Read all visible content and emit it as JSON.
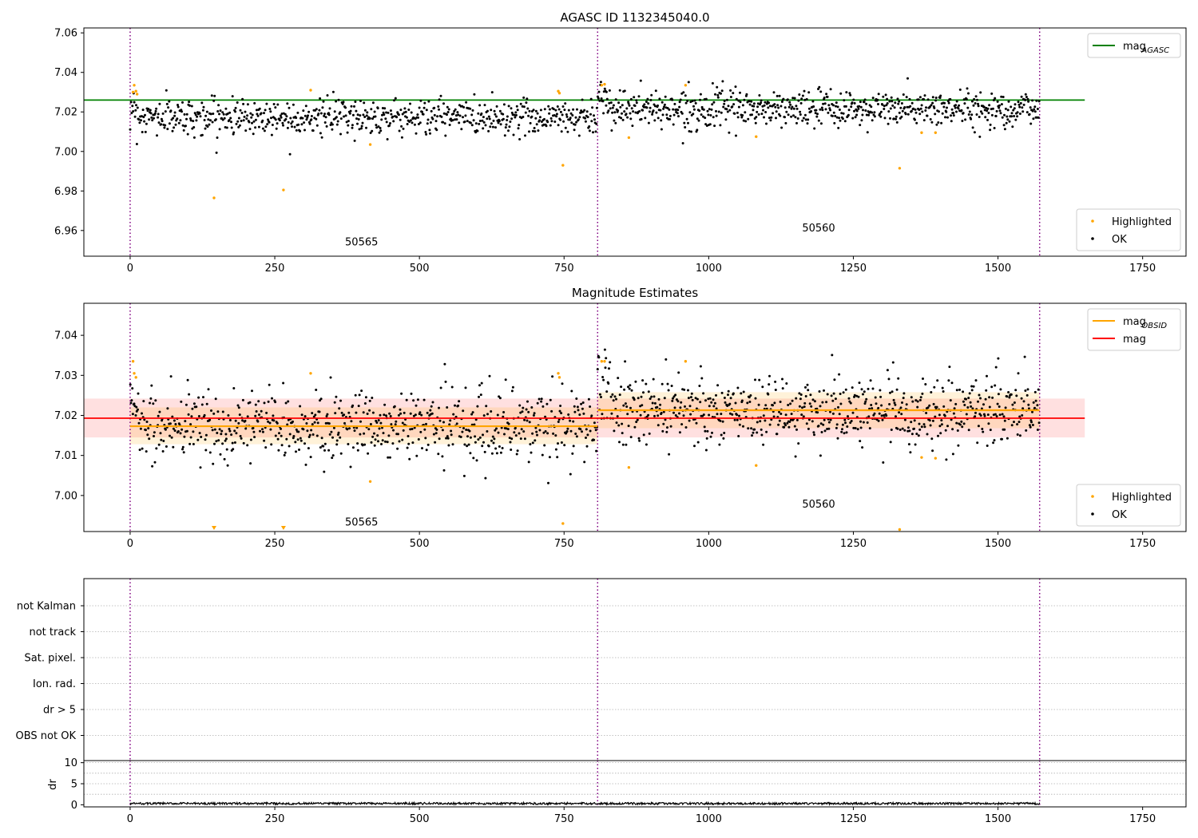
{
  "chart_data": [
    {
      "type": "scatter",
      "title": "AGASC ID 1132345040.0",
      "xlim": [
        -80,
        1825
      ],
      "ylim": [
        6.947,
        7.0625
      ],
      "xticks": [
        "0",
        "250",
        "500",
        "750",
        "1000",
        "1250",
        "1500",
        "1750"
      ],
      "xtick_values": [
        0,
        250,
        500,
        750,
        1000,
        1250,
        1500,
        1750
      ],
      "yticks": [
        "6.96",
        "6.98",
        "7.00",
        "7.02",
        "7.04",
        "7.06"
      ],
      "ytick_values": [
        6.96,
        6.98,
        7.0,
        7.02,
        7.04,
        7.06
      ],
      "epoch_lines": [
        0,
        808,
        1572
      ],
      "obsid_labels": [
        {
          "text": "50565",
          "x": 400,
          "y": 6.9525
        },
        {
          "text": "50560",
          "x": 1190,
          "y": 6.9595
        }
      ],
      "reference_lines": [
        {
          "name": "mag_AGASC",
          "y": 7.026,
          "x": [
            -80,
            1650
          ],
          "color": "#008000"
        }
      ],
      "ok_points": {
        "name": "OK",
        "color": "#000000",
        "segments": [
          {
            "x": [
              0,
              808
            ],
            "mean": 7.0175,
            "sd": 0.0045,
            "n": 700
          },
          {
            "x": [
              808,
              1572
            ],
            "mean": 7.0215,
            "sd": 0.0045,
            "n": 700
          }
        ]
      },
      "highlighted_points": {
        "name": "Highlighted",
        "color": "#ffa500",
        "points": [
          [
            5,
            7.03
          ],
          [
            7,
            7.0335
          ],
          [
            10,
            7.0305
          ],
          [
            12,
            7.029
          ],
          [
            145,
            6.9765
          ],
          [
            265,
            6.9805
          ],
          [
            312,
            7.031
          ],
          [
            415,
            7.0035
          ],
          [
            740,
            7.0305
          ],
          [
            742,
            7.0295
          ],
          [
            748,
            6.993
          ],
          [
            815,
            7.0335
          ],
          [
            820,
            7.034
          ],
          [
            862,
            7.007
          ],
          [
            960,
            7.0335
          ],
          [
            1082,
            7.0075
          ],
          [
            1330,
            6.9915
          ],
          [
            1368,
            7.0095
          ],
          [
            1392,
            7.0095
          ]
        ]
      },
      "legends": [
        {
          "position": "top-right",
          "entries": [
            {
              "label": "mag",
              "subscript": "AGASC",
              "kind": "line",
              "color": "#008000"
            }
          ]
        },
        {
          "position": "lower-right",
          "entries": [
            {
              "label": "Highlighted",
              "kind": "dot",
              "color": "#ffa500"
            },
            {
              "label": "OK",
              "kind": "dot",
              "color": "#000000"
            }
          ]
        }
      ]
    },
    {
      "type": "scatter",
      "title": "Magnitude Estimates",
      "xlim": [
        -80,
        1825
      ],
      "ylim": [
        6.991,
        7.048
      ],
      "xticks": [
        "0",
        "250",
        "500",
        "750",
        "1000",
        "1250",
        "1500",
        "1750"
      ],
      "xtick_values": [
        0,
        250,
        500,
        750,
        1000,
        1250,
        1500,
        1750
      ],
      "yticks": [
        "7.00",
        "7.01",
        "7.02",
        "7.03",
        "7.04"
      ],
      "ytick_values": [
        7.0,
        7.01,
        7.02,
        7.03,
        7.04
      ],
      "epoch_lines": [
        0,
        808,
        1572
      ],
      "obsid_labels": [
        {
          "text": "50565",
          "x": 400,
          "y": 6.9925
        },
        {
          "text": "50560",
          "x": 1190,
          "y": 6.997
        }
      ],
      "bands": [
        {
          "x": [
            -80,
            1650
          ],
          "y": [
            7.0145,
            7.0242
          ],
          "color": "#ff0000",
          "alpha": 0.12
        },
        {
          "x": [
            0,
            808
          ],
          "y": [
            7.0128,
            7.022
          ],
          "color": "#ffa500",
          "alpha": 0.15
        },
        {
          "x": [
            808,
            1572
          ],
          "y": [
            7.0168,
            7.0258
          ],
          "color": "#ffa500",
          "alpha": 0.15
        }
      ],
      "reference_lines": [
        {
          "name": "mag",
          "y": 7.0193,
          "x": [
            -80,
            1650
          ],
          "color": "#ff0000"
        },
        {
          "name": "mag_OBSID",
          "y": 7.0173,
          "x": [
            0,
            808
          ],
          "color": "#ffa500"
        },
        {
          "name": "mag_OBSID",
          "y": 7.0213,
          "x": [
            808,
            1572
          ],
          "color": "#ffa500"
        }
      ],
      "ok_points": {
        "name": "OK",
        "color": "#000000",
        "segments": [
          {
            "x": [
              0,
              808
            ],
            "mean": 7.0175,
            "sd": 0.0045,
            "n": 700
          },
          {
            "x": [
              808,
              1572
            ],
            "mean": 7.0215,
            "sd": 0.0045,
            "n": 700
          }
        ]
      },
      "highlighted_points": {
        "name": "Highlighted",
        "color": "#ffa500",
        "points": [
          [
            5,
            7.0335
          ],
          [
            7,
            7.0305
          ],
          [
            10,
            7.0295
          ],
          [
            312,
            7.0305
          ],
          [
            415,
            7.0035
          ],
          [
            740,
            7.0305
          ],
          [
            742,
            7.0295
          ],
          [
            748,
            6.993
          ],
          [
            815,
            7.0335
          ],
          [
            820,
            7.0335
          ],
          [
            862,
            7.007
          ],
          [
            960,
            7.0335
          ],
          [
            1082,
            7.0075
          ],
          [
            1368,
            7.0095
          ],
          [
            1392,
            7.0093
          ],
          [
            1330,
            6.9915
          ]
        ],
        "below_axis_markers": [
          145,
          265
        ]
      },
      "legends": [
        {
          "position": "top-right",
          "entries": [
            {
              "label": "mag",
              "subscript": "OBSID",
              "kind": "line",
              "color": "#ffa500"
            },
            {
              "label": "mag",
              "kind": "line",
              "color": "#ff0000"
            }
          ]
        },
        {
          "position": "lower-right",
          "entries": [
            {
              "label": "Highlighted",
              "kind": "dot",
              "color": "#ffa500"
            },
            {
              "label": "OK",
              "kind": "dot",
              "color": "#000000"
            }
          ]
        }
      ]
    },
    {
      "type": "table",
      "title": "",
      "xlim": [
        -80,
        1825
      ],
      "flags": [
        "not Kalman",
        "not track",
        "Sat. pixel.",
        "Ion. rad.",
        "dr > 5",
        "OBS not OK"
      ],
      "grid": true,
      "epoch_lines": [
        0,
        808,
        1572
      ],
      "flagged_points": []
    },
    {
      "type": "line",
      "title": "",
      "ylabel": "dr",
      "xlim": [
        -80,
        1825
      ],
      "ylim": [
        -0.5,
        10.5
      ],
      "xticks": [
        "0",
        "250",
        "500",
        "750",
        "1000",
        "1250",
        "1500",
        "1750"
      ],
      "xtick_values": [
        0,
        250,
        500,
        750,
        1000,
        1250,
        1500,
        1750
      ],
      "yticks": [
        "0",
        "5",
        "10"
      ],
      "ytick_values": [
        0,
        5,
        10
      ],
      "grid": true,
      "epoch_lines": [
        0,
        808,
        1572
      ],
      "series": [
        {
          "x": [
            0,
            1572
          ],
          "level": 0.3,
          "spread": 0.25
        }
      ]
    }
  ]
}
